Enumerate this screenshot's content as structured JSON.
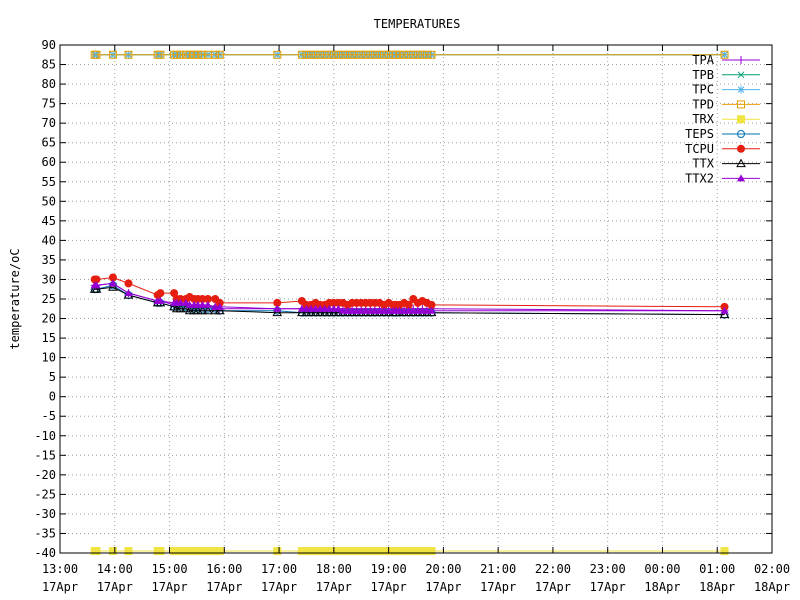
{
  "chart_data": {
    "type": "line",
    "title": "TEMPERATURES",
    "xlabel": "",
    "ylabel": "temperature/oC",
    "ylim": [
      -40,
      90
    ],
    "xlim": [
      "13:00 17Apr",
      "02:00 18Apr"
    ],
    "yticks": [
      90,
      85,
      80,
      75,
      70,
      65,
      60,
      55,
      50,
      45,
      40,
      35,
      30,
      25,
      20,
      15,
      10,
      5,
      0,
      -5,
      -10,
      -15,
      -20,
      -25,
      -30,
      -35,
      -40
    ],
    "xticks": [
      {
        "time": "13:00",
        "date": "17Apr"
      },
      {
        "time": "14:00",
        "date": "17Apr"
      },
      {
        "time": "15:00",
        "date": "17Apr"
      },
      {
        "time": "16:00",
        "date": "17Apr"
      },
      {
        "time": "17:00",
        "date": "17Apr"
      },
      {
        "time": "18:00",
        "date": "17Apr"
      },
      {
        "time": "19:00",
        "date": "17Apr"
      },
      {
        "time": "20:00",
        "date": "17Apr"
      },
      {
        "time": "21:00",
        "date": "17Apr"
      },
      {
        "time": "22:00",
        "date": "17Apr"
      },
      {
        "time": "23:00",
        "date": "17Apr"
      },
      {
        "time": "00:00",
        "date": "18Apr"
      },
      {
        "time": "01:00",
        "date": "18Apr"
      },
      {
        "time": "02:00",
        "date": "18Apr"
      }
    ],
    "grid": true,
    "legend": "top-right",
    "x": [
      "13:38",
      "13:40",
      "13:58",
      "14:15",
      "14:47",
      "14:50",
      "15:05",
      "15:08",
      "15:12",
      "15:18",
      "15:22",
      "15:27",
      "15:31",
      "15:36",
      "15:42",
      "15:50",
      "15:55",
      "16:58",
      "17:25",
      "17:30",
      "17:35",
      "17:40",
      "17:45",
      "17:50",
      "17:55",
      "18:00",
      "18:05",
      "18:10",
      "18:15",
      "18:20",
      "18:25",
      "18:30",
      "18:35",
      "18:40",
      "18:45",
      "18:50",
      "18:55",
      "19:00",
      "19:05",
      "19:08",
      "19:12",
      "19:17",
      "19:22",
      "19:27",
      "19:32",
      "19:37",
      "19:42",
      "19:47",
      "01:08"
    ],
    "series": [
      {
        "name": "TPA",
        "color": "#9400d3",
        "marker": "plus",
        "values": [
          28.5,
          28.5,
          29,
          26.5,
          24.5,
          24.5,
          23.5,
          23.5,
          23.5,
          23.5,
          23,
          23,
          23,
          23,
          23,
          23,
          22.5,
          22.5,
          22.5,
          22.5,
          22.5,
          22.5,
          22.5,
          22.5,
          22.5,
          22.5,
          22.5,
          22.5,
          22.5,
          22.5,
          22.5,
          22.5,
          22.5,
          22.5,
          22.5,
          22.5,
          22.5,
          22.5,
          22.5,
          22.5,
          22.5,
          22.5,
          22.5,
          22.5,
          22.5,
          22.5,
          22.5,
          22.5,
          22
        ]
      },
      {
        "name": "TPB",
        "color": "#009e73",
        "marker": "cross",
        "values": [
          87.5,
          87.5,
          87.5,
          87.5,
          87.5,
          87.5,
          87.5,
          87.5,
          87.5,
          87.5,
          87.5,
          87.5,
          87.5,
          87.5,
          87.5,
          87.5,
          87.5,
          87.5,
          87.5,
          87.5,
          87.5,
          87.5,
          87.5,
          87.5,
          87.5,
          87.5,
          87.5,
          87.5,
          87.5,
          87.5,
          87.5,
          87.5,
          87.5,
          87.5,
          87.5,
          87.5,
          87.5,
          87.5,
          87.5,
          87.5,
          87.5,
          87.5,
          87.5,
          87.5,
          87.5,
          87.5,
          87.5,
          87.5,
          87.5
        ]
      },
      {
        "name": "TPC",
        "color": "#56b4e9",
        "marker": "star",
        "values": [
          87.5,
          87.5,
          87.5,
          87.5,
          87.5,
          87.5,
          87.5,
          87.5,
          87.5,
          87.5,
          87.5,
          87.5,
          87.5,
          87.5,
          87.5,
          87.5,
          87.5,
          87.5,
          87.5,
          87.5,
          87.5,
          87.5,
          87.5,
          87.5,
          87.5,
          87.5,
          87.5,
          87.5,
          87.5,
          87.5,
          87.5,
          87.5,
          87.5,
          87.5,
          87.5,
          87.5,
          87.5,
          87.5,
          87.5,
          87.5,
          87.5,
          87.5,
          87.5,
          87.5,
          87.5,
          87.5,
          87.5,
          87.5,
          87.5
        ]
      },
      {
        "name": "TPD",
        "color": "#e69f00",
        "marker": "box",
        "values": [
          87.5,
          87.5,
          87.5,
          87.5,
          87.5,
          87.5,
          87.5,
          87.5,
          87.5,
          87.5,
          87.5,
          87.5,
          87.5,
          87.5,
          87.5,
          87.5,
          87.5,
          87.5,
          87.5,
          87.5,
          87.5,
          87.5,
          87.5,
          87.5,
          87.5,
          87.5,
          87.5,
          87.5,
          87.5,
          87.5,
          87.5,
          87.5,
          87.5,
          87.5,
          87.5,
          87.5,
          87.5,
          87.5,
          87.5,
          87.5,
          87.5,
          87.5,
          87.5,
          87.5,
          87.5,
          87.5,
          87.5,
          87.5,
          87.5
        ]
      },
      {
        "name": "TRX",
        "color": "#f0e442",
        "marker": "fbox",
        "values": [
          -39.5,
          -39.5,
          -39.5,
          -39.5,
          -39.5,
          -39.5,
          -39.5,
          -39.5,
          -39.5,
          -39.5,
          -39.5,
          -39.5,
          -39.5,
          -39.5,
          -39.5,
          -39.5,
          -39.5,
          -39.5,
          -39.5,
          -39.5,
          -39.5,
          -39.5,
          -39.5,
          -39.5,
          -39.5,
          -39.5,
          -39.5,
          -39.5,
          -39.5,
          -39.5,
          -39.5,
          -39.5,
          -39.5,
          -39.5,
          -39.5,
          -39.5,
          -39.5,
          -39.5,
          -39.5,
          -39.5,
          -39.5,
          -39.5,
          -39.5,
          -39.5,
          -39.5,
          -39.5,
          -39.5,
          -39.5,
          -39.5
        ]
      },
      {
        "name": "TEPS",
        "color": "#0072b2",
        "marker": "circle",
        "values": [
          27.5,
          27.5,
          28.5,
          26,
          24,
          24,
          23,
          23,
          23,
          23,
          22.5,
          22.5,
          22.5,
          22.5,
          22.5,
          22.5,
          22,
          22,
          21.5,
          21.5,
          21.5,
          21.5,
          21.5,
          21.5,
          21.5,
          21.5,
          21.5,
          21.5,
          21.5,
          21.5,
          21.5,
          21.5,
          21.5,
          21.5,
          21.5,
          21.5,
          21.5,
          21.5,
          21.5,
          21.5,
          21.5,
          21.5,
          21.5,
          21.5,
          21.5,
          21.5,
          21.5,
          21.5,
          21
        ]
      },
      {
        "name": "TCPU",
        "color": "#e51e10",
        "marker": "fcircle",
        "values": [
          30,
          30,
          30.5,
          29,
          26,
          26.5,
          26.5,
          25,
          25,
          25,
          25.5,
          25,
          25,
          25,
          25,
          25,
          24,
          24,
          24.5,
          23.5,
          23.5,
          24,
          23.5,
          23.5,
          24,
          24,
          24,
          24,
          23.5,
          24,
          24,
          24,
          24,
          24,
          24,
          24,
          23.5,
          24,
          23.5,
          23.5,
          23.5,
          24,
          23.5,
          25,
          24,
          24.5,
          24,
          23.5,
          23
        ]
      },
      {
        "name": "TTX",
        "color": "#000000",
        "marker": "triangle",
        "values": [
          27.5,
          27.5,
          28,
          26,
          24,
          24,
          23,
          22.5,
          22.5,
          22.5,
          22,
          22,
          22,
          22,
          22,
          22,
          22,
          21.5,
          21.5,
          21.5,
          21.5,
          21.5,
          21.5,
          21.5,
          21.5,
          21.5,
          21.5,
          21.5,
          21.5,
          21.5,
          21.5,
          21.5,
          21.5,
          21.5,
          21.5,
          21.5,
          21.5,
          21.5,
          21.5,
          21.5,
          21.5,
          21.5,
          21.5,
          21.5,
          21.5,
          21.5,
          21.5,
          21.5,
          21
        ]
      },
      {
        "name": "TTX2",
        "color": "#9400d3",
        "marker": "ftriangle",
        "values": [
          28.5,
          28.5,
          29,
          26.5,
          24.5,
          24.5,
          24,
          24,
          24,
          24,
          23.5,
          23.5,
          23.5,
          23.5,
          23.5,
          23,
          23,
          22.5,
          22.5,
          22.5,
          22.5,
          22.5,
          22.5,
          22.5,
          22.5,
          22.5,
          22.5,
          22,
          22,
          22,
          22,
          22,
          22,
          22,
          22,
          22,
          22,
          22,
          22,
          22,
          22,
          22,
          22,
          22,
          22,
          22,
          22,
          22,
          22
        ]
      }
    ]
  }
}
